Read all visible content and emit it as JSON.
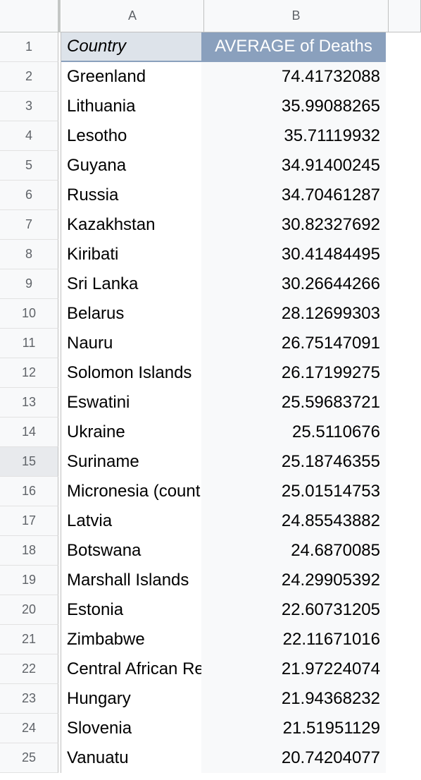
{
  "columns": [
    "A",
    "B"
  ],
  "header": {
    "row_number": "1",
    "col_a": "Country",
    "col_b": "AVERAGE of Deaths"
  },
  "rows": [
    {
      "num": "2",
      "country": "Greenland",
      "value": "74.41732088"
    },
    {
      "num": "3",
      "country": "Lithuania",
      "value": "35.99088265"
    },
    {
      "num": "4",
      "country": "Lesotho",
      "value": "35.71119932"
    },
    {
      "num": "5",
      "country": "Guyana",
      "value": "34.91400245"
    },
    {
      "num": "6",
      "country": "Russia",
      "value": "34.70461287"
    },
    {
      "num": "7",
      "country": "Kazakhstan",
      "value": "30.82327692"
    },
    {
      "num": "8",
      "country": "Kiribati",
      "value": "30.41484495"
    },
    {
      "num": "9",
      "country": "Sri Lanka",
      "value": "30.26644266"
    },
    {
      "num": "10",
      "country": "Belarus",
      "value": "28.12699303"
    },
    {
      "num": "11",
      "country": "Nauru",
      "value": "26.75147091"
    },
    {
      "num": "12",
      "country": "Solomon Islands",
      "value": "26.17199275"
    },
    {
      "num": "13",
      "country": "Eswatini",
      "value": "25.59683721"
    },
    {
      "num": "14",
      "country": "Ukraine",
      "value": "25.5110676"
    },
    {
      "num": "15",
      "country": "Suriname",
      "value": "25.18746355"
    },
    {
      "num": "16",
      "country": "Micronesia (country)",
      "value": "25.01514753"
    },
    {
      "num": "17",
      "country": "Latvia",
      "value": "24.85543882"
    },
    {
      "num": "18",
      "country": "Botswana",
      "value": "24.6870085"
    },
    {
      "num": "19",
      "country": "Marshall Islands",
      "value": "24.29905392"
    },
    {
      "num": "20",
      "country": "Estonia",
      "value": "22.60731205"
    },
    {
      "num": "21",
      "country": "Zimbabwe",
      "value": "22.11671016"
    },
    {
      "num": "22",
      "country": "Central African Republic",
      "value": "21.97224074"
    },
    {
      "num": "23",
      "country": "Hungary",
      "value": "21.94368232"
    },
    {
      "num": "24",
      "country": "Slovenia",
      "value": "21.51951129"
    },
    {
      "num": "25",
      "country": "Vanuatu",
      "value": "20.74204077"
    }
  ],
  "active_row": "15",
  "colors": {
    "header_fill": "#8aa0bd",
    "header_text": "#ffffff",
    "country_header_fill": "#dde3ea"
  }
}
